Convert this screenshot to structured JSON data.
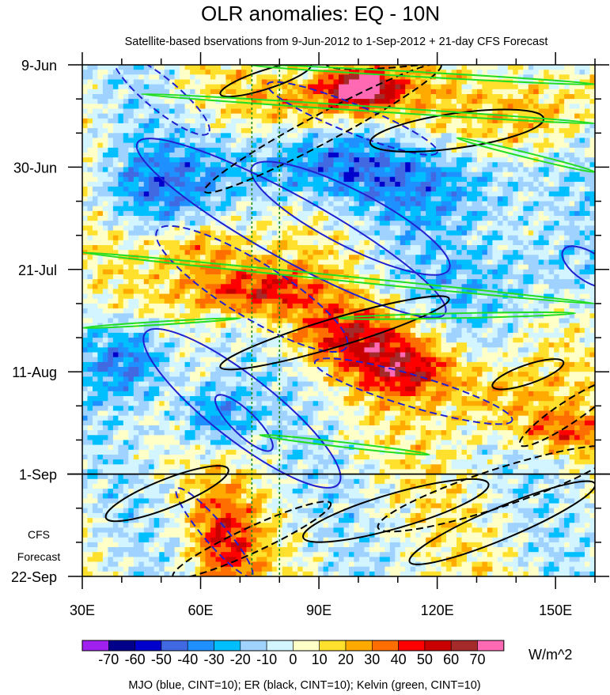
{
  "chart_data": {
    "type": "heatmap",
    "title": "OLR anomalies: EQ - 10N",
    "subtitle": "Satellite-based bservations from 9-Jun-2012 to 1-Sep-2012 + 21-day CFS Forecast",
    "xlabel": "",
    "ylabel": "",
    "xlim": [
      30,
      160
    ],
    "ylim_days": [
      0,
      105
    ],
    "x_ticks": [
      {
        "value": 30,
        "label": "30E"
      },
      {
        "value": 60,
        "label": "60E"
      },
      {
        "value": 90,
        "label": "90E"
      },
      {
        "value": 120,
        "label": "120E"
      },
      {
        "value": 150,
        "label": "150E"
      }
    ],
    "y_ticks": [
      {
        "day": 0,
        "label": "9-Jun"
      },
      {
        "day": 21,
        "label": "30-Jun"
      },
      {
        "day": 42,
        "label": "21-Jul"
      },
      {
        "day": 63,
        "label": "11-Aug"
      },
      {
        "day": 84,
        "label": "1-Sep"
      },
      {
        "day": 105,
        "label": "22-Sep"
      }
    ],
    "forecast_label": [
      "CFS",
      "Forecast"
    ],
    "forecast_start_day": 84,
    "reference_lons": [
      73,
      80
    ],
    "colorbar": {
      "unit": "W/m^2",
      "levels": [
        "-70",
        "-60",
        "-50",
        "-40",
        "-30",
        "-20",
        "-10",
        "0",
        "10",
        "20",
        "30",
        "40",
        "50",
        "60",
        "70"
      ],
      "colors": [
        "#a020f0",
        "#00008b",
        "#0000cd",
        "#4169e1",
        "#1e90ff",
        "#00bfff",
        "#a0d2ff",
        "#d2f5ff",
        "#ffffc8",
        "#ffe12d",
        "#ffaa00",
        "#ff6e00",
        "#ff0000",
        "#c80000",
        "#a52a2a",
        "#ff69b4"
      ]
    },
    "anomaly_features": [
      {
        "lon": 100,
        "day": 4,
        "value": 75,
        "slon": 6,
        "sday": 2.5
      },
      {
        "lon": 95,
        "day": 7,
        "value": 40,
        "slon": 14,
        "sday": 5
      },
      {
        "lon": 145,
        "day": 9,
        "value": 30,
        "slon": 10,
        "sday": 6
      },
      {
        "lon": 72,
        "day": 46,
        "value": 55,
        "slon": 12,
        "sday": 4
      },
      {
        "lon": 60,
        "day": 37,
        "value": 35,
        "slon": 8,
        "sday": 4
      },
      {
        "lon": 98,
        "day": 55,
        "value": 40,
        "slon": 12,
        "sday": 4
      },
      {
        "lon": 112,
        "day": 62,
        "value": 50,
        "slon": 10,
        "sday": 4
      },
      {
        "lon": 65,
        "day": 98,
        "value": 40,
        "slon": 6,
        "sday": 8
      },
      {
        "lon": 135,
        "day": 68,
        "value": 30,
        "slon": 10,
        "sday": 5
      },
      {
        "lon": 150,
        "day": 75,
        "value": 35,
        "slon": 8,
        "sday": 3
      },
      {
        "lon": 42,
        "day": 60,
        "value": -45,
        "slon": 8,
        "sday": 6
      },
      {
        "lon": 85,
        "day": 20,
        "value": -40,
        "slon": 18,
        "sday": 6
      },
      {
        "lon": 125,
        "day": 24,
        "value": -30,
        "slon": 14,
        "sday": 6
      },
      {
        "lon": 62,
        "day": 72,
        "value": -40,
        "slon": 7,
        "sday": 5
      },
      {
        "lon": 140,
        "day": 42,
        "value": -25,
        "slon": 15,
        "sday": 8
      },
      {
        "lon": 45,
        "day": 25,
        "value": -30,
        "slon": 10,
        "sday": 6
      }
    ],
    "contours": {
      "mjo_solid": [
        [
          44,
          16,
          122,
          51,
          40
        ],
        [
          73,
          21,
          123,
          42,
          35
        ],
        [
          46,
          55,
          95,
          86,
          40
        ],
        [
          64,
          68,
          78,
          79,
          15
        ],
        [
          152,
          38,
          165,
          45,
          18
        ]
      ],
      "mjo_dashed": [
        [
          49,
          34,
          97,
          58,
          35
        ],
        [
          38,
          -2,
          62,
          14,
          20
        ],
        [
          77,
          4,
          120,
          18,
          18
        ],
        [
          89,
          61,
          139,
          73,
          20
        ],
        [
          54,
          87,
          73,
          105,
          14
        ]
      ],
      "er_solid": [
        [
          65,
          62,
          123,
          48,
          18
        ],
        [
          103,
          16,
          147,
          11,
          22
        ],
        [
          36,
          93,
          67,
          83,
          18
        ],
        [
          86,
          97,
          133,
          86,
          22
        ],
        [
          113,
          102,
          160,
          86,
          20
        ],
        [
          134,
          66,
          152,
          61,
          12
        ],
        [
          65,
          6,
          88,
          0,
          12
        ]
      ],
      "er_dashed": [
        [
          61,
          26,
          121,
          0,
          18
        ],
        [
          105,
          95,
          165,
          79,
          24
        ],
        [
          141,
          78,
          165,
          65,
          14
        ],
        [
          53,
          105,
          93,
          90,
          16
        ],
        [
          92,
          0,
          145,
          -5,
          14
        ]
      ],
      "kelvin": [
        [
          30,
          38.5,
          160,
          49,
          3
        ],
        [
          72,
          0,
          160,
          4,
          3
        ],
        [
          45,
          6,
          160,
          12,
          3
        ],
        [
          75,
          76,
          118,
          80,
          3
        ],
        [
          95,
          52,
          155,
          51,
          3
        ],
        [
          125,
          15,
          160,
          22,
          3
        ],
        [
          30,
          54,
          70,
          52,
          2
        ]
      ]
    },
    "footer": "MJO (blue, CINT=10); ER (black, CINT=10); Kelvin (green, CINT=10)"
  }
}
